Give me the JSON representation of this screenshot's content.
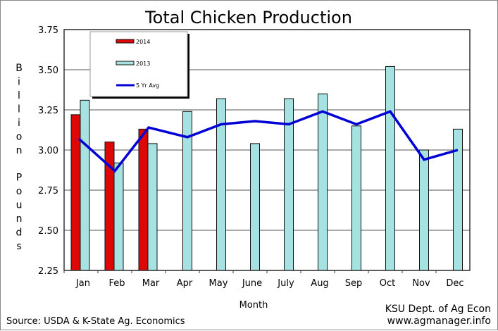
{
  "chart_data": {
    "type": "bar",
    "title": "Total Chicken Production",
    "xlabel": "Month",
    "ylabel": "Billion Pounds",
    "ylim": [
      2.25,
      3.75
    ],
    "yticks": [
      "2.25",
      "2.50",
      "2.75",
      "3.00",
      "3.25",
      "3.50",
      "3.75"
    ],
    "grid": true,
    "legend_position": "top-left",
    "categories": [
      "Jan",
      "Feb",
      "Mar",
      "Apr",
      "May",
      "June",
      "July",
      "Aug",
      "Sep",
      "Oct",
      "Nov",
      "Dec"
    ],
    "series": [
      {
        "name": "2014",
        "type": "bar",
        "color": "#dd0806",
        "values": [
          3.22,
          3.05,
          3.13,
          null,
          null,
          null,
          null,
          null,
          null,
          null,
          null,
          null
        ]
      },
      {
        "name": "2013",
        "type": "bar",
        "color": "#a6e2e2",
        "values": [
          3.31,
          2.92,
          3.04,
          3.24,
          3.32,
          3.04,
          3.32,
          3.35,
          3.15,
          3.52,
          3.0,
          3.13
        ]
      },
      {
        "name": "5 Yr Avg",
        "type": "line",
        "color": "#0000d4",
        "values": [
          3.07,
          2.87,
          3.14,
          3.08,
          3.16,
          3.18,
          3.16,
          3.24,
          3.16,
          3.24,
          2.94,
          3.0
        ]
      }
    ]
  },
  "footer": {
    "source": "Source:  USDA & K-State Ag. Economics",
    "credit_line1": "KSU Dept. of Ag Econ",
    "credit_line2": "www.agmanager.info"
  }
}
